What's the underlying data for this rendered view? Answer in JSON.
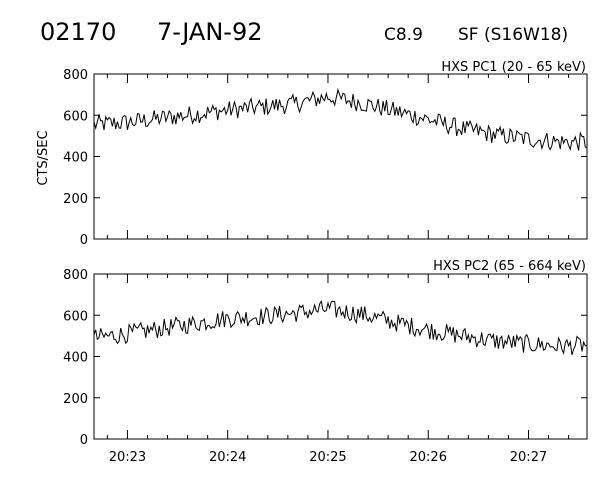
{
  "header": {
    "event_id": "02170",
    "date": "7-JAN-92",
    "goes_class": "C8.9",
    "location": "SF (S16W18)"
  },
  "chart_data": [
    {
      "type": "line",
      "panel_label": "HXS PC1 (20 - 65 keV)",
      "ylabel": "CTS/SEC",
      "xlabel": "",
      "ylim": [
        0,
        800
      ],
      "yticks": [
        0,
        200,
        400,
        600,
        800
      ],
      "xlim": [
        "20:22:40",
        "20:27:35"
      ],
      "xticks": [
        "20:23",
        "20:24",
        "20:25",
        "20:26",
        "20:27"
      ],
      "grid": false,
      "x": [
        "20:22:40",
        "20:23:00",
        "20:23:20",
        "20:23:40",
        "20:24:00",
        "20:24:20",
        "20:24:40",
        "20:25:00",
        "20:25:20",
        "20:25:40",
        "20:26:00",
        "20:26:20",
        "20:26:40",
        "20:27:00",
        "20:27:20",
        "20:27:35"
      ],
      "values": [
        555,
        565,
        585,
        605,
        625,
        640,
        655,
        690,
        660,
        620,
        580,
        535,
        505,
        485,
        470,
        470
      ]
    },
    {
      "type": "line",
      "panel_label": "HXS PC2 (65 - 664 keV)",
      "ylabel": "",
      "xlabel": "",
      "ylim": [
        0,
        800
      ],
      "yticks": [
        0,
        200,
        400,
        600,
        800
      ],
      "xlim": [
        "20:22:40",
        "20:27:35"
      ],
      "xticks": [
        "20:23",
        "20:24",
        "20:25",
        "20:26",
        "20:27"
      ],
      "grid": false,
      "x": [
        "20:22:40",
        "20:23:00",
        "20:23:20",
        "20:23:40",
        "20:24:00",
        "20:24:20",
        "20:24:40",
        "20:25:00",
        "20:25:20",
        "20:25:40",
        "20:26:00",
        "20:26:20",
        "20:26:40",
        "20:27:00",
        "20:27:20",
        "20:27:35"
      ],
      "values": [
        490,
        510,
        535,
        560,
        585,
        595,
        610,
        630,
        605,
        565,
        530,
        500,
        475,
        460,
        450,
        455
      ]
    }
  ]
}
